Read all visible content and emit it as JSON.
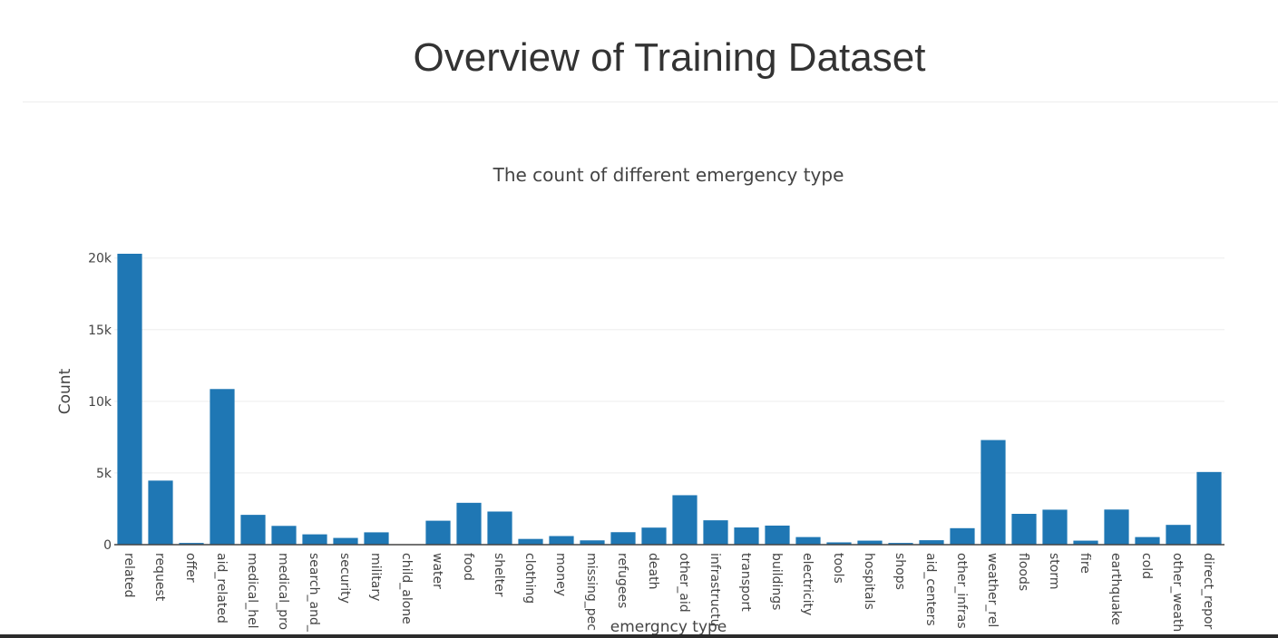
{
  "page": {
    "title": "Overview of Training Dataset"
  },
  "colors": {
    "bar": "#1f77b4",
    "grid": "#eeeeee",
    "axis_line": "#444444",
    "text": "#444444"
  },
  "chart_data": {
    "type": "bar",
    "title": "The count of different emergency type",
    "xlabel": "emergncy type",
    "ylabel": "Count",
    "ylim": [
      0,
      20300
    ],
    "yticks": [
      0,
      5000,
      10000,
      15000,
      20000
    ],
    "ytick_labels": [
      "0",
      "5k",
      "10k",
      "15k",
      "20k"
    ],
    "grid": true,
    "categories": [
      "related",
      "request",
      "offer",
      "aid_related",
      "medical_hel",
      "medical_pro",
      "search_and_",
      "security",
      "military",
      "child_alone",
      "water",
      "food",
      "shelter",
      "clothing",
      "money",
      "missing_pec",
      "refugees",
      "death",
      "other_aid",
      "infrastructu",
      "transport",
      "buildings",
      "electricity",
      "tools",
      "hospitals",
      "shops",
      "aid_centers",
      "other_infras",
      "weather_rel",
      "floods",
      "storm",
      "fire",
      "earthquake",
      "cold",
      "other_weath",
      "direct_repor"
    ],
    "values": [
      20300,
      4470,
      120,
      10860,
      2080,
      1310,
      720,
      470,
      860,
      0,
      1670,
      2920,
      2310,
      400,
      600,
      300,
      870,
      1190,
      3450,
      1700,
      1200,
      1330,
      530,
      160,
      280,
      120,
      310,
      1150,
      7300,
      2150,
      2440,
      280,
      2450,
      530,
      1380,
      5070
    ]
  }
}
